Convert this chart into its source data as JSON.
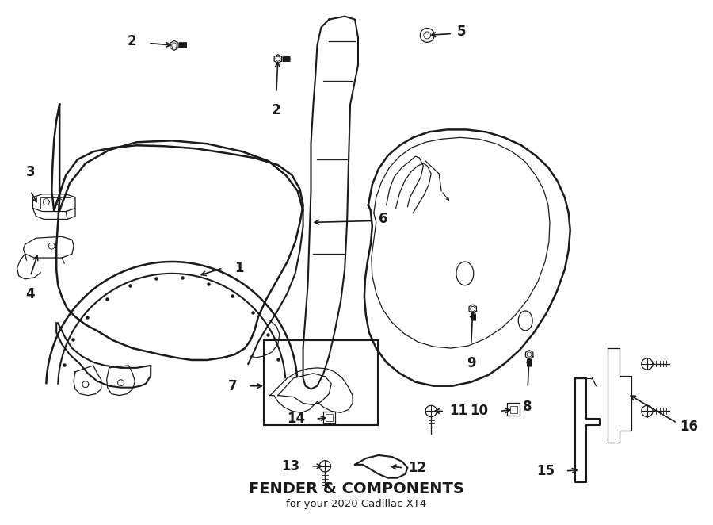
{
  "title": "FENDER & COMPONENTS",
  "subtitle": "for your 2020 Cadillac XT4",
  "background_color": "#ffffff",
  "line_color": "#1a1a1a",
  "fig_width": 9.0,
  "fig_height": 6.62,
  "dpi": 100
}
